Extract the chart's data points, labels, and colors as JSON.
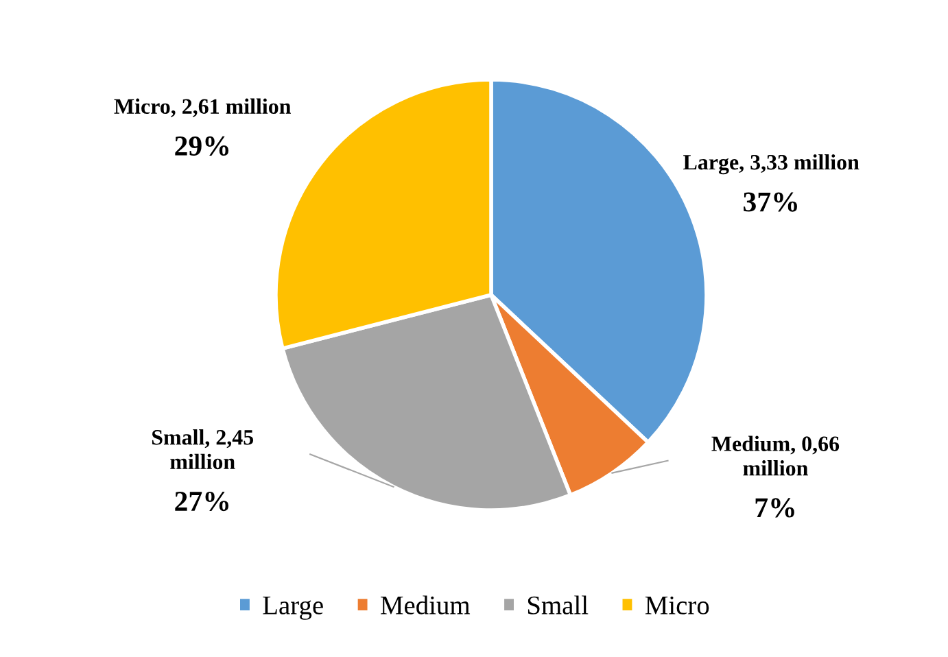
{
  "chart_data": {
    "type": "pie",
    "categories": [
      "Large",
      "Medium",
      "Small",
      "Micro"
    ],
    "values": [
      37,
      7,
      27,
      29
    ],
    "colors": [
      "#5b9bd5",
      "#ed7d31",
      "#a5a5a5",
      "#ffc000"
    ],
    "value_labels": [
      "Large, 3,33 million\n37%",
      "Medium, 0,66\nmillion\n7%",
      "Small, 2,45\nmillion\n27%",
      "Micro, 2,61 million\n29%"
    ],
    "legend": "bottom"
  }
}
